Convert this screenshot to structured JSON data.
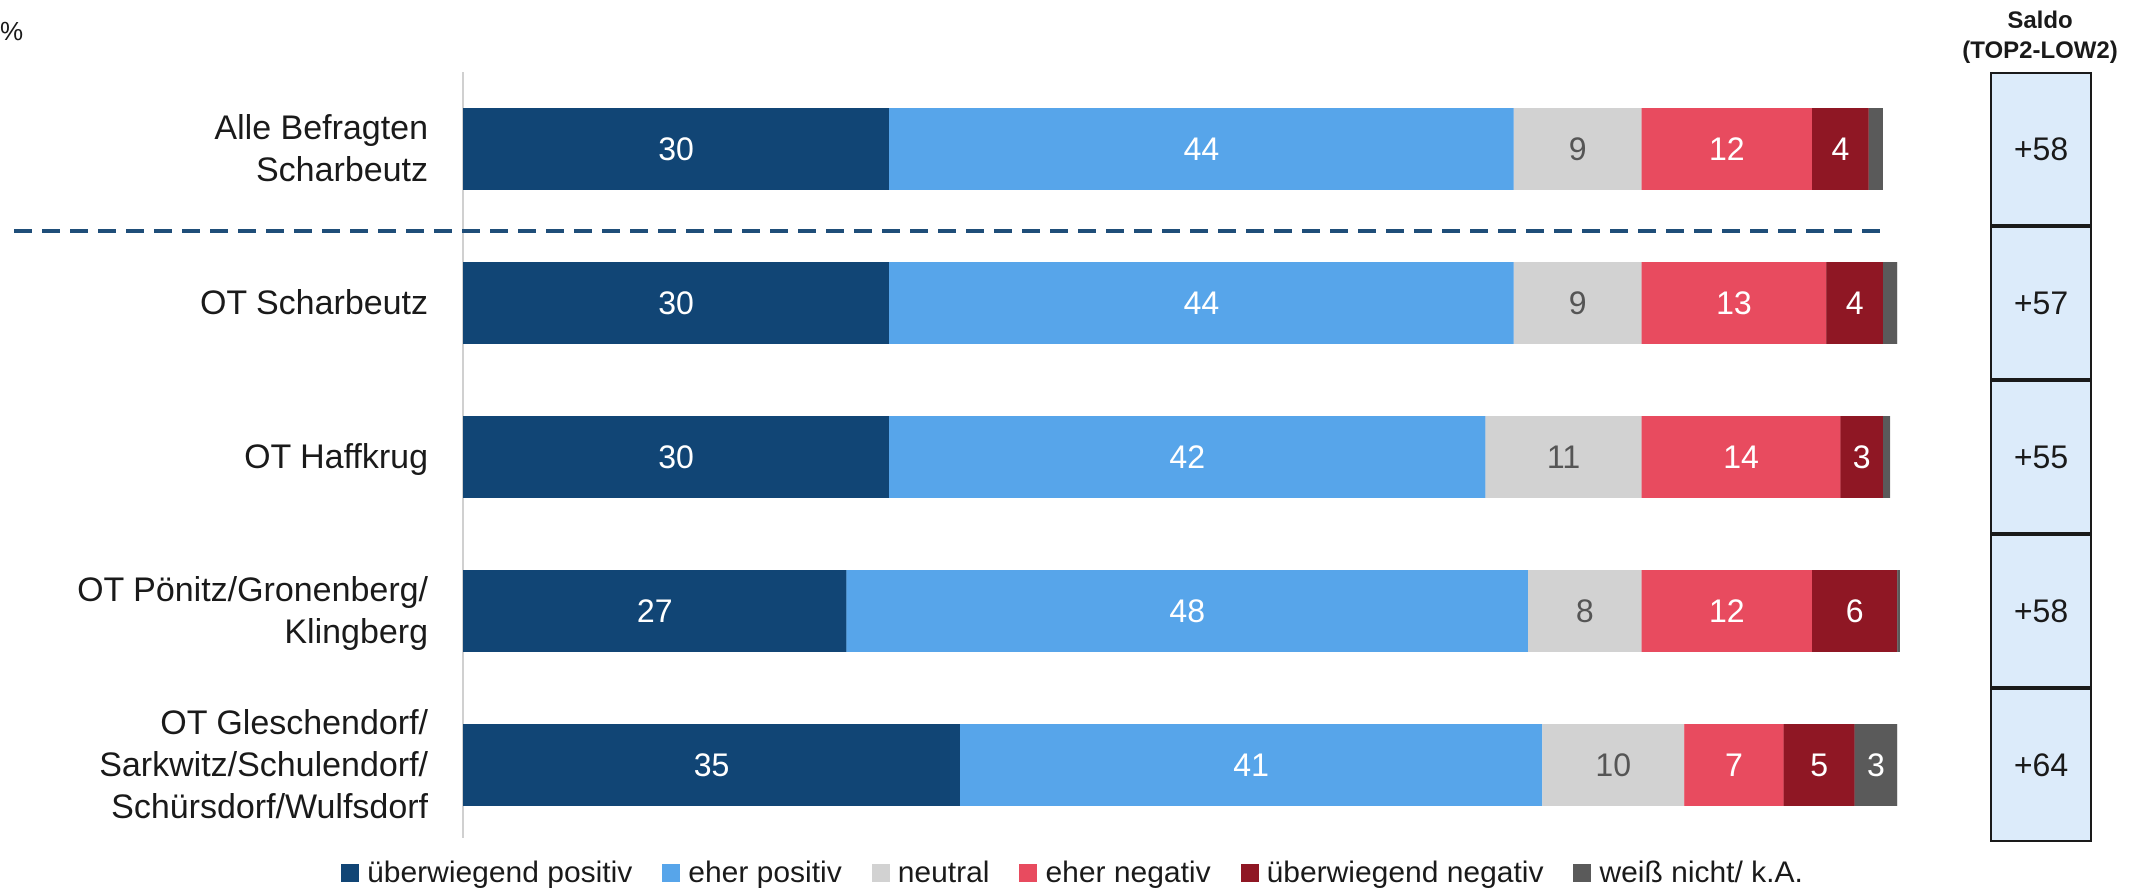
{
  "unit_label": "%",
  "saldo": {
    "title_line1": "Saldo",
    "title_line2": "(TOP2-LOW2)",
    "values": [
      "+58",
      "+57",
      "+55",
      "+58",
      "+64"
    ]
  },
  "colors": {
    "ueberwiegend_positiv": "#114575",
    "eher_positiv": "#57a5ea",
    "neutral": "#d2d2d2",
    "eher_negativ": "#e84b5f",
    "ueberwiegend_negativ": "#8f1724",
    "weiss_nicht": "#5a5a5a",
    "divider": "#1f4e79",
    "saldo_fill": "#dcebfa"
  },
  "chart_data": {
    "type": "bar",
    "orientation": "horizontal",
    "stacked": true,
    "unit": "%",
    "xlim": [
      0,
      100
    ],
    "categories": [
      [
        "Alle Befragten",
        "Scharbeutz"
      ],
      [
        "OT Scharbeutz"
      ],
      [
        "OT Haffkrug"
      ],
      [
        "OT Pönitz/Gronenberg/",
        "Klingberg"
      ],
      [
        "OT Gleschendorf/",
        "Sarkwitz/Schulendorf/",
        "Schürsdorf/Wulfsdorf"
      ]
    ],
    "series": [
      {
        "name": "überwiegend positiv",
        "values": [
          30,
          30,
          30,
          27,
          35
        ],
        "labels": [
          "30",
          "30",
          "30",
          "27",
          "35"
        ]
      },
      {
        "name": "eher positiv",
        "values": [
          44,
          44,
          42,
          48,
          41
        ],
        "labels": [
          "44",
          "44",
          "42",
          "48",
          "41"
        ]
      },
      {
        "name": "neutral",
        "values": [
          9,
          9,
          11,
          8,
          10
        ],
        "labels": [
          "9",
          "9",
          "11",
          "8",
          "10"
        ]
      },
      {
        "name": "eher negativ",
        "values": [
          12,
          13,
          14,
          12,
          7
        ],
        "labels": [
          "12",
          "13",
          "14",
          "12",
          "7"
        ]
      },
      {
        "name": "überwiegend negativ",
        "values": [
          4,
          4,
          3,
          6,
          5
        ],
        "labels": [
          "4",
          "4",
          "3",
          "6",
          "5"
        ]
      },
      {
        "name": "weiß nicht/ k.A.",
        "values": [
          1,
          1,
          0.5,
          0.5,
          3
        ],
        "labels": [
          "",
          "",
          "",
          "",
          "3"
        ]
      }
    ],
    "legend_position": "bottom",
    "divider_after_first_row": true,
    "grid": false
  }
}
